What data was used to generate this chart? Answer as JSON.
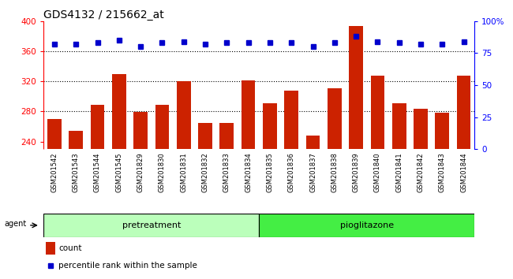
{
  "title": "GDS4132 / 215662_at",
  "samples": [
    "GSM201542",
    "GSM201543",
    "GSM201544",
    "GSM201545",
    "GSM201829",
    "GSM201830",
    "GSM201831",
    "GSM201832",
    "GSM201833",
    "GSM201834",
    "GSM201835",
    "GSM201836",
    "GSM201837",
    "GSM201838",
    "GSM201839",
    "GSM201840",
    "GSM201841",
    "GSM201842",
    "GSM201843",
    "GSM201844"
  ],
  "counts": [
    270,
    254,
    289,
    330,
    279,
    289,
    320,
    265,
    265,
    321,
    291,
    308,
    248,
    311,
    393,
    328,
    291,
    284,
    278,
    328
  ],
  "percentile_ranks": [
    82,
    82,
    83,
    85,
    80,
    83,
    84,
    82,
    83,
    83,
    83,
    83,
    80,
    83,
    88,
    84,
    83,
    82,
    82,
    84
  ],
  "bar_color": "#cc2200",
  "dot_color": "#0000cc",
  "ylim_left": [
    230,
    400
  ],
  "ylim_right": [
    0,
    100
  ],
  "yticks_left": [
    240,
    280,
    320,
    360,
    400
  ],
  "yticks_right": [
    0,
    25,
    50,
    75,
    100
  ],
  "grid_values": [
    280,
    320,
    360
  ],
  "pretreatment_count": 10,
  "pioglitazone_count": 10,
  "xtick_bg_color": "#d0d0d0",
  "agent_label": "agent",
  "pretreatment_label": "pretreatment",
  "pioglitazone_label": "pioglitazone",
  "pretreatment_color": "#bbffbb",
  "pioglitazone_color": "#44ee44",
  "legend_count_label": "count",
  "legend_percentile_label": "percentile rank within the sample",
  "title_fontsize": 10,
  "tick_fontsize": 7.5,
  "xtick_fontsize": 6,
  "agent_fontsize": 7,
  "band_fontsize": 8,
  "legend_fontsize": 7.5,
  "bar_width": 0.65
}
